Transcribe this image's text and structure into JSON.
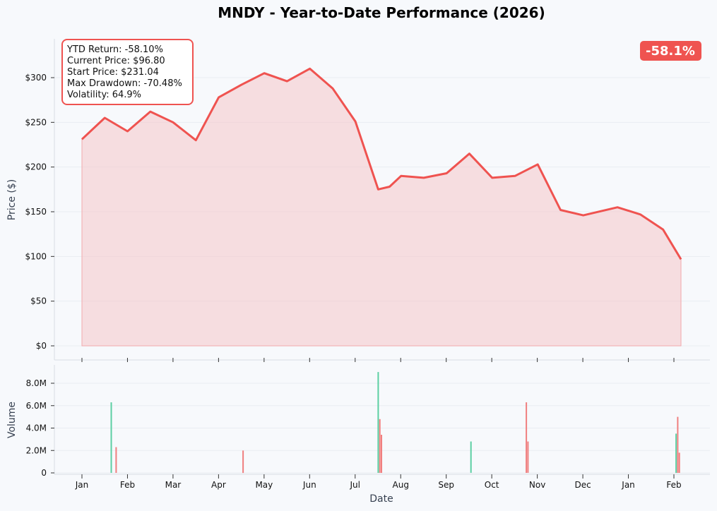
{
  "title": "MNDY - Year-to-Date Performance (2026)",
  "badge": "-58.1%",
  "stats": [
    "YTD Return: -58.10%",
    "Current Price: $96.80",
    "Start Price: $231.04",
    "Max Drawdown: -70.48%",
    "Volatility: 64.9%"
  ],
  "colors": {
    "line": "#ef5350",
    "fill": "#f5c6c8",
    "up": "#5ccfa3",
    "down": "#f07f7f",
    "title": "#1f2937",
    "badge_bg": "#ef5350"
  },
  "chart_data": [
    {
      "type": "area",
      "title": "MNDY - Year-to-Date Performance (2026)",
      "xlabel": "",
      "ylabel": "Price ($)",
      "ylim": [
        0,
        340
      ],
      "yticks": [
        0,
        50,
        100,
        150,
        200,
        250,
        300
      ],
      "ytick_labels": [
        "$0",
        "$50",
        "$100",
        "$150",
        "$200",
        "$250",
        "$300"
      ],
      "grid": true,
      "x": [
        "2025-02-10",
        "2025-02-24",
        "2025-03-10",
        "2025-03-24",
        "2025-04-07",
        "2025-04-21",
        "2025-05-05",
        "2025-05-19",
        "2025-06-02",
        "2025-06-16",
        "2025-06-30",
        "2025-07-14",
        "2025-07-28",
        "2025-08-11",
        "2025-08-18",
        "2025-08-25",
        "2025-09-08",
        "2025-09-22",
        "2025-10-06",
        "2025-10-20",
        "2025-11-03",
        "2025-11-17",
        "2025-12-01",
        "2025-12-15",
        "2026-01-05",
        "2026-01-19",
        "2026-02-02",
        "2026-02-13"
      ],
      "values": [
        231.04,
        255,
        240,
        262,
        250,
        230,
        278,
        292,
        305,
        296,
        310,
        288,
        251,
        175,
        178,
        190,
        188,
        193,
        215,
        188,
        190,
        203,
        152,
        146,
        155,
        147,
        130,
        96.8
      ]
    },
    {
      "type": "bar",
      "title": "",
      "xlabel": "Date",
      "ylabel": "Volume",
      "ylim": [
        0,
        9500000
      ],
      "yticks": [
        0,
        2000000,
        4000000,
        6000000,
        8000000
      ],
      "ytick_labels": [
        "0",
        "2.0M",
        "4.0M",
        "6.0M",
        "8.0M"
      ],
      "x_ticks": [
        "Jan",
        "Feb",
        "Mar",
        "Apr",
        "May",
        "Jun",
        "Jul",
        "Aug",
        "Sep",
        "Oct",
        "Nov",
        "Dec",
        "Jan",
        "Feb"
      ],
      "grid": true,
      "x": [
        "2025-02-28",
        "2025-03-03",
        "2025-05-20",
        "2025-08-11",
        "2025-08-12",
        "2025-08-13",
        "2025-10-07",
        "2025-11-10",
        "2025-11-11",
        "2026-02-10",
        "2026-02-11",
        "2026-02-12"
      ],
      "values": [
        6300000,
        2300000,
        2000000,
        9000000,
        4800000,
        3400000,
        2800000,
        6300000,
        2800000,
        3500000,
        5000000,
        1800000
      ],
      "note_series": "daily volume, green = up day, red = down day"
    }
  ]
}
